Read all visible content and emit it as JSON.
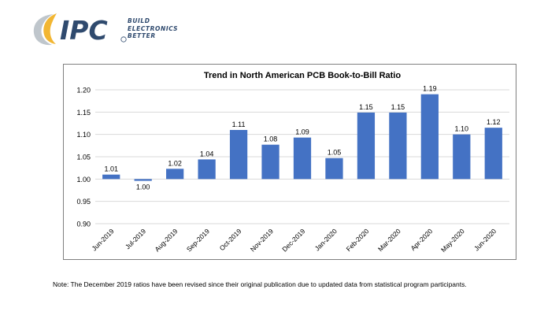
{
  "header": {
    "logo_text": "IPC",
    "tagline": [
      "BUILD",
      "ELECTRONICS",
      "BETTER"
    ]
  },
  "colors": {
    "bar": "#4472c4",
    "grid": "#d9d9d9",
    "logo_navy": "#2f4a6e",
    "logo_gold": "#f2b632",
    "logo_gray": "#bfc6cc"
  },
  "chart_data": {
    "type": "bar",
    "title": "Trend in North American PCB Book-to-Bill Ratio",
    "categories": [
      "Jun-2019",
      "Jul-2019",
      "Aug-2019",
      "Sep-2019",
      "Oct-2019",
      "Nov-2019",
      "Dec-2019",
      "Jan-2020",
      "Feb-2020",
      "Mar-2020",
      "Apr-2020",
      "May-2020",
      "Jun-2020"
    ],
    "values": [
      1.01,
      0.996,
      1.023,
      1.044,
      1.11,
      1.077,
      1.093,
      1.047,
      1.149,
      1.149,
      1.19,
      1.1,
      1.115
    ],
    "data_labels": [
      "1.01",
      "1.00",
      "1.02",
      "1.04",
      "1.11",
      "1.08",
      "1.09",
      "1.05",
      "1.15",
      "1.15",
      "1.19",
      "1.10",
      "1.12"
    ],
    "y_ticks": [
      "0.90",
      "0.95",
      "1.00",
      "1.05",
      "1.10",
      "1.15",
      "1.20"
    ],
    "ylim": [
      0.9,
      1.2
    ],
    "baseline": 1.0,
    "grid": true,
    "legend": "none"
  },
  "footer": {
    "note": "Note: The December 2019 ratios have been revised since their original publication due to updated data from statistical program participants."
  }
}
